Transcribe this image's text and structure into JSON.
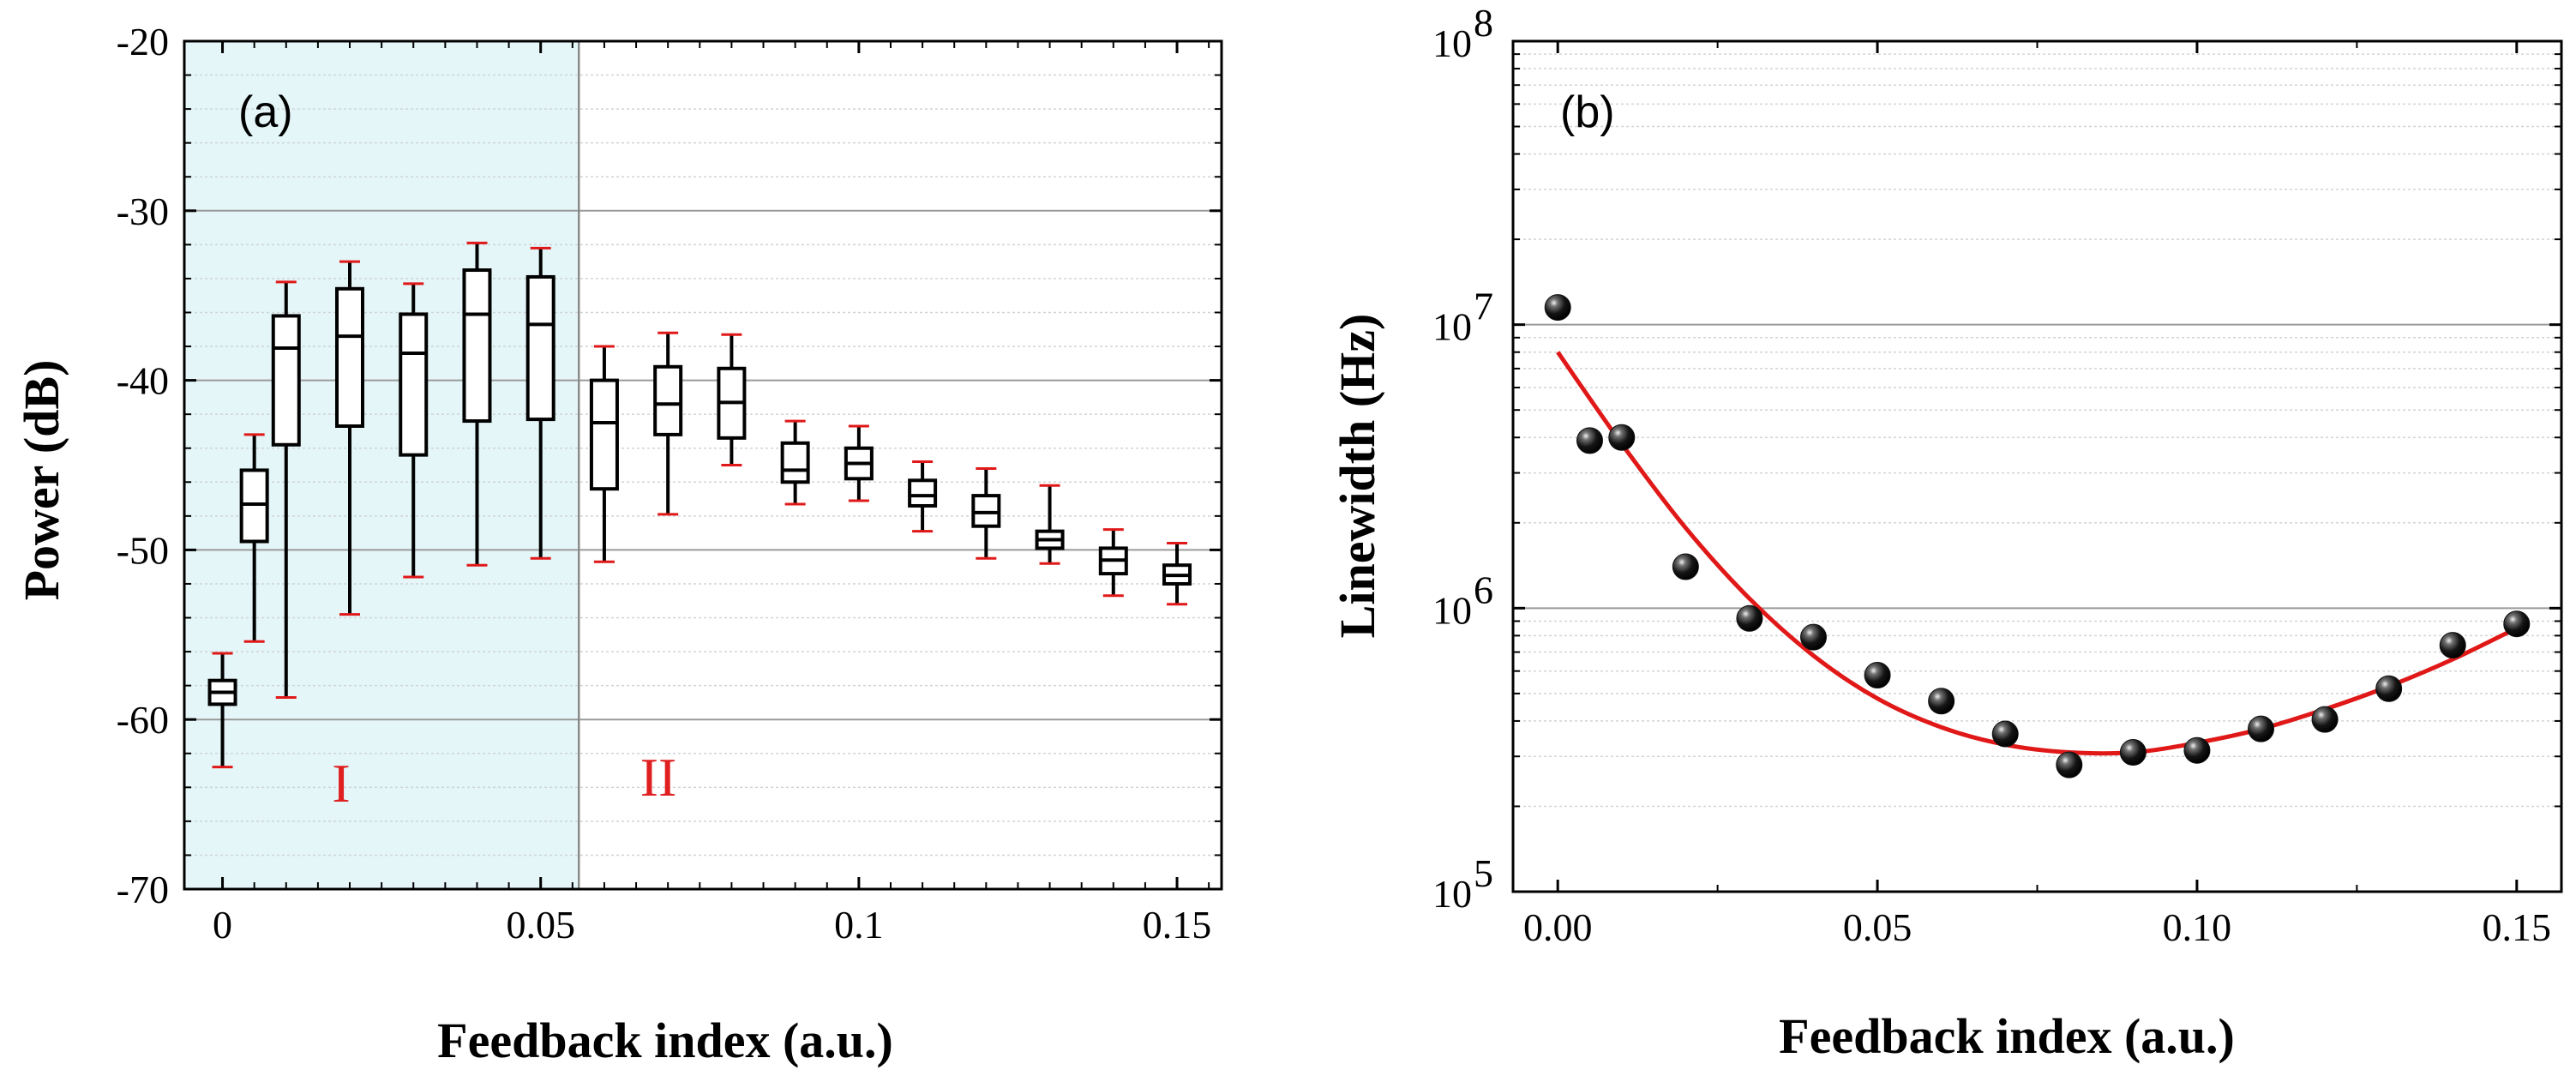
{
  "chart_data": [
    {
      "type": "box",
      "panel_label": "(a)",
      "xlabel": "Feedback index (a.u.)",
      "ylabel": "Power (dB)",
      "xlim": [
        -0.006,
        0.157
      ],
      "ylim": [
        -70,
        -20
      ],
      "x_ticks": [
        0,
        0.05,
        0.1,
        0.15
      ],
      "x_tick_labels": [
        "0",
        "0.05",
        "0.1",
        "0.15"
      ],
      "y_ticks": [
        -20,
        -30,
        -40,
        -50,
        -60,
        -70
      ],
      "y_tick_labels": [
        "-20",
        "-30",
        "-40",
        "-50",
        "-60",
        "-70"
      ],
      "grid": true,
      "regions": [
        {
          "label": "I",
          "x_start": -0.006,
          "x_end": 0.056,
          "shaded": true
        },
        {
          "label": "II",
          "x_start": 0.056,
          "x_end": 0.157,
          "shaded": false
        }
      ],
      "boxes": [
        {
          "x": 0.0,
          "min": -62.8,
          "q1": -59.1,
          "median": -58.4,
          "q3": -57.7,
          "max": -56.1
        },
        {
          "x": 0.005,
          "min": -55.4,
          "q1": -49.5,
          "median": -47.3,
          "q3": -45.3,
          "max": -43.2
        },
        {
          "x": 0.01,
          "min": -58.7,
          "q1": -43.8,
          "median": -38.1,
          "q3": -36.2,
          "max": -34.2
        },
        {
          "x": 0.02,
          "min": -53.8,
          "q1": -42.7,
          "median": -37.4,
          "q3": -34.6,
          "max": -33.0
        },
        {
          "x": 0.03,
          "min": -51.6,
          "q1": -44.4,
          "median": -38.4,
          "q3": -36.1,
          "max": -34.3
        },
        {
          "x": 0.04,
          "min": -50.9,
          "q1": -42.4,
          "median": -36.1,
          "q3": -33.5,
          "max": -31.9
        },
        {
          "x": 0.05,
          "min": -50.5,
          "q1": -42.3,
          "median": -36.7,
          "q3": -33.9,
          "max": -32.2
        },
        {
          "x": 0.06,
          "min": -50.7,
          "q1": -46.4,
          "median": -42.5,
          "q3": -40.0,
          "max": -38.0
        },
        {
          "x": 0.07,
          "min": -47.9,
          "q1": -43.2,
          "median": -41.4,
          "q3": -39.2,
          "max": -37.2
        },
        {
          "x": 0.08,
          "min": -45.0,
          "q1": -43.4,
          "median": -41.3,
          "q3": -39.3,
          "max": -37.3
        },
        {
          "x": 0.09,
          "min": -47.3,
          "q1": -46.0,
          "median": -45.3,
          "q3": -43.7,
          "max": -42.4
        },
        {
          "x": 0.1,
          "min": -47.1,
          "q1": -45.8,
          "median": -44.9,
          "q3": -44.0,
          "max": -42.7
        },
        {
          "x": 0.11,
          "min": -48.9,
          "q1": -47.4,
          "median": -46.8,
          "q3": -45.9,
          "max": -44.8
        },
        {
          "x": 0.12,
          "min": -50.5,
          "q1": -48.6,
          "median": -47.8,
          "q3": -46.8,
          "max": -45.2
        },
        {
          "x": 0.13,
          "min": -50.8,
          "q1": -49.9,
          "median": -49.4,
          "q3": -48.9,
          "max": -46.2
        },
        {
          "x": 0.14,
          "min": -52.7,
          "q1": -51.4,
          "median": -50.6,
          "q3": -49.9,
          "max": -48.8
        },
        {
          "x": 0.15,
          "min": -53.2,
          "q1": -52.0,
          "median": -51.5,
          "q3": -50.9,
          "max": -49.6
        }
      ]
    },
    {
      "type": "scatter",
      "panel_label": "(b)",
      "xlabel": "Feedback index (a.u.)",
      "ylabel": "Linewidth (Hz)",
      "yscale": "log",
      "xlim": [
        -0.007,
        0.157
      ],
      "ylim": [
        100000,
        100000000
      ],
      "x_ticks": [
        0,
        0.05,
        0.1,
        0.15
      ],
      "x_tick_labels": [
        "0.00",
        "0.05",
        "0.10",
        "0.15"
      ],
      "y_ticks": [
        100000,
        1000000,
        10000000,
        100000000
      ],
      "y_tick_labels": [
        {
          "base": "10",
          "exp": "5"
        },
        {
          "base": "10",
          "exp": "6"
        },
        {
          "base": "10",
          "exp": "7"
        },
        {
          "base": "10",
          "exp": "8"
        }
      ],
      "grid": true,
      "points": [
        {
          "x": 0.0,
          "y": 11500000
        },
        {
          "x": 0.005,
          "y": 3900000
        },
        {
          "x": 0.01,
          "y": 4000000
        },
        {
          "x": 0.02,
          "y": 1400000
        },
        {
          "x": 0.03,
          "y": 920000
        },
        {
          "x": 0.04,
          "y": 790000
        },
        {
          "x": 0.05,
          "y": 580000
        },
        {
          "x": 0.06,
          "y": 470000
        },
        {
          "x": 0.07,
          "y": 360000
        },
        {
          "x": 0.08,
          "y": 280000
        },
        {
          "x": 0.09,
          "y": 310000
        },
        {
          "x": 0.1,
          "y": 315000
        },
        {
          "x": 0.11,
          "y": 375000
        },
        {
          "x": 0.12,
          "y": 405000
        },
        {
          "x": 0.13,
          "y": 520000
        },
        {
          "x": 0.14,
          "y": 740000
        },
        {
          "x": 0.15,
          "y": 880000
        }
      ],
      "fit_curve": [
        {
          "x": 0.0,
          "y": 8000000
        },
        {
          "x": 0.01,
          "y": 3800000
        },
        {
          "x": 0.02,
          "y": 1920000
        },
        {
          "x": 0.03,
          "y": 1080000
        },
        {
          "x": 0.04,
          "y": 680000
        },
        {
          "x": 0.05,
          "y": 480000
        },
        {
          "x": 0.06,
          "y": 380000
        },
        {
          "x": 0.07,
          "y": 330000
        },
        {
          "x": 0.08,
          "y": 310000
        },
        {
          "x": 0.09,
          "y": 310000
        },
        {
          "x": 0.1,
          "y": 335000
        },
        {
          "x": 0.11,
          "y": 375000
        },
        {
          "x": 0.12,
          "y": 440000
        },
        {
          "x": 0.13,
          "y": 530000
        },
        {
          "x": 0.14,
          "y": 660000
        },
        {
          "x": 0.15,
          "y": 850000
        }
      ],
      "fit_color": "#e01818",
      "marker_color": "#111111"
    }
  ]
}
